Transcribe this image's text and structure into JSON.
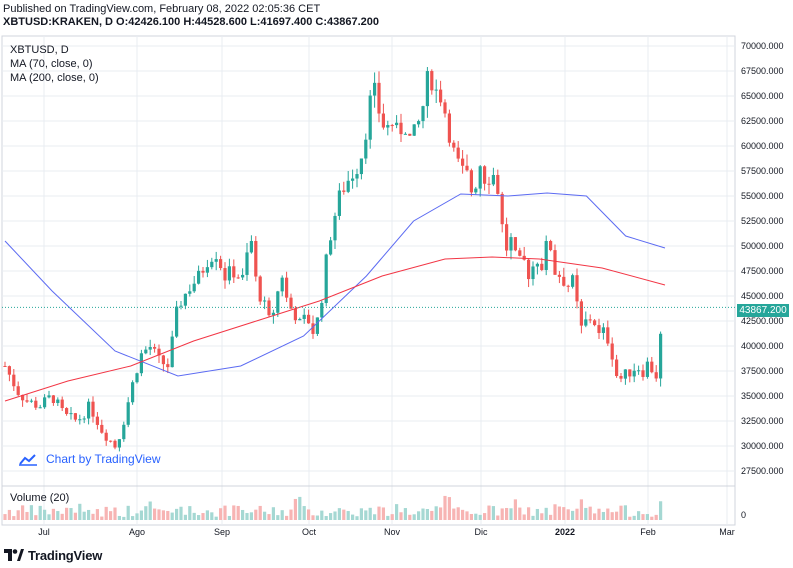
{
  "header": {
    "line1": "Published on TradingView.com, February 08, 2022 02:05:36 CET",
    "line2": "XBTUSD:KRAKEN, D  O:42426.100 H:44528.600 L:41697.400 C:43867.200"
  },
  "legend": {
    "symbol": "XBTUSD, D",
    "ma70": "MA (70, close, 0)",
    "ma200": "MA (200, close, 0)",
    "volume": "Volume (20)"
  },
  "watermark": {
    "text": "Chart by TradingView"
  },
  "footer": {
    "brand": "TradingView"
  },
  "last_price": {
    "label": "43867.200",
    "value": 43867.2
  },
  "colors": {
    "up": "#26a69a",
    "down": "#ef5350",
    "ma70": "#5c6bf2",
    "ma200": "#f23645",
    "vol_up": "#a5d8d3",
    "vol_down": "#f7b4b3",
    "grid": "#e9ecf2",
    "accent": "#2962ff"
  },
  "chart_data": {
    "type": "candlestick",
    "title": "XBTUSD, D",
    "ylim": [
      26000,
      71000
    ],
    "y_ticks": [
      "70000.000",
      "67500.000",
      "65000.000",
      "62500.000",
      "60000.000",
      "57500.000",
      "55000.000",
      "52500.000",
      "50000.000",
      "47500.000",
      "45000.000",
      "42500.000",
      "40000.000",
      "37500.000",
      "35000.000",
      "32500.000",
      "30000.000",
      "27500.000"
    ],
    "x_ticks": [
      "Jul",
      "Ago",
      "Sep",
      "Oct",
      "Nov",
      "Dic",
      "2022",
      "Feb",
      "Mar"
    ],
    "volume_axis_label": "0",
    "close_path": [
      [
        0,
        38000
      ],
      [
        8,
        35500
      ],
      [
        14,
        34500
      ],
      [
        22,
        34000
      ],
      [
        30,
        35000
      ],
      [
        38,
        33000
      ],
      [
        46,
        32500
      ],
      [
        54,
        34000
      ],
      [
        62,
        31500
      ],
      [
        70,
        30000
      ],
      [
        74,
        31500
      ],
      [
        80,
        35500
      ],
      [
        86,
        39000
      ],
      [
        92,
        40000
      ],
      [
        98,
        38500
      ],
      [
        104,
        38000
      ],
      [
        110,
        44000
      ],
      [
        118,
        46000
      ],
      [
        124,
        47000
      ],
      [
        128,
        48500
      ],
      [
        134,
        49500
      ],
      [
        140,
        47000
      ],
      [
        146,
        47500
      ],
      [
        152,
        46500
      ],
      [
        156,
        51500
      ],
      [
        160,
        46000
      ],
      [
        164,
        44500
      ],
      [
        168,
        42500
      ],
      [
        172,
        44000
      ],
      [
        176,
        47500
      ],
      [
        180,
        44000
      ],
      [
        184,
        43500
      ],
      [
        188,
        42000
      ],
      [
        192,
        43000
      ],
      [
        196,
        41500
      ],
      [
        200,
        43000
      ],
      [
        204,
        48000
      ],
      [
        208,
        52000
      ],
      [
        214,
        55500
      ],
      [
        220,
        57000
      ],
      [
        226,
        58500
      ],
      [
        230,
        62000
      ],
      [
        234,
        66000
      ],
      [
        238,
        63500
      ],
      [
        242,
        61500
      ],
      [
        246,
        62500
      ],
      [
        250,
        61000
      ],
      [
        254,
        62500
      ],
      [
        258,
        60500
      ],
      [
        262,
        61500
      ],
      [
        266,
        64000
      ],
      [
        270,
        67500
      ],
      [
        274,
        65500
      ],
      [
        278,
        65000
      ],
      [
        282,
        62000
      ],
      [
        286,
        59000
      ],
      [
        290,
        57500
      ],
      [
        294,
        57000
      ],
      [
        298,
        55000
      ],
      [
        302,
        58500
      ],
      [
        306,
        56500
      ],
      [
        310,
        57500
      ],
      [
        314,
        55500
      ],
      [
        318,
        49500
      ],
      [
        322,
        50500
      ],
      [
        326,
        48000
      ],
      [
        330,
        48500
      ],
      [
        334,
        47000
      ],
      [
        338,
        49000
      ],
      [
        342,
        48000
      ],
      [
        346,
        51000
      ],
      [
        350,
        47500
      ],
      [
        354,
        47000
      ],
      [
        358,
        46000
      ],
      [
        362,
        46500
      ],
      [
        366,
        41500
      ],
      [
        370,
        42500
      ],
      [
        374,
        43000
      ],
      [
        378,
        41000
      ],
      [
        382,
        41500
      ],
      [
        386,
        39500
      ],
      [
        390,
        36500
      ],
      [
        394,
        37000
      ],
      [
        398,
        37500
      ],
      [
        402,
        38000
      ],
      [
        406,
        37500
      ],
      [
        410,
        38500
      ],
      [
        414,
        36500
      ],
      [
        418,
        42000
      ],
      [
        420,
        43867
      ]
    ],
    "ma70_path": [
      [
        0,
        50500
      ],
      [
        30,
        45500
      ],
      [
        70,
        39500
      ],
      [
        110,
        37000
      ],
      [
        150,
        38000
      ],
      [
        190,
        41000
      ],
      [
        230,
        47000
      ],
      [
        260,
        52500
      ],
      [
        290,
        55200
      ],
      [
        320,
        55000
      ],
      [
        345,
        55300
      ],
      [
        370,
        55000
      ],
      [
        395,
        51000
      ],
      [
        420,
        49800
      ]
    ],
    "ma200_path": [
      [
        0,
        34500
      ],
      [
        40,
        36500
      ],
      [
        80,
        38000
      ],
      [
        120,
        40500
      ],
      [
        160,
        42500
      ],
      [
        200,
        44500
      ],
      [
        240,
        47000
      ],
      [
        280,
        48700
      ],
      [
        310,
        48900
      ],
      [
        340,
        48700
      ],
      [
        380,
        47800
      ],
      [
        420,
        46100
      ]
    ],
    "days_total": 420
  }
}
